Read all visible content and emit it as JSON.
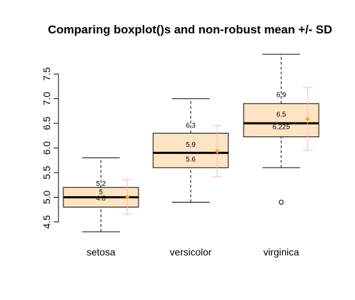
{
  "chart_data": {
    "type": "boxplot",
    "title": "Comparing boxplot()s and non-robust mean +/- SD",
    "xlabel": "",
    "ylabel": "",
    "ylim": [
      4.3,
      7.9
    ],
    "yticks": [
      4.5,
      5.0,
      5.5,
      6.0,
      6.5,
      7.0,
      7.5
    ],
    "ytick_labels": [
      "4.5",
      "5.0",
      "5.5",
      "6.0",
      "6.5",
      "7.0",
      "7.5"
    ],
    "categories": [
      "setosa",
      "versicolor",
      "virginica"
    ],
    "boxes": [
      {
        "category": "setosa",
        "min": 4.3,
        "q1": 4.8,
        "median": 5.0,
        "q3": 5.2,
        "max": 5.8,
        "outliers": []
      },
      {
        "category": "versicolor",
        "min": 4.9,
        "q1": 5.6,
        "median": 5.9,
        "q3": 6.3,
        "max": 7.0,
        "outliers": []
      },
      {
        "category": "virginica",
        "min": 5.6,
        "q1": 6.225,
        "median": 6.5,
        "q3": 6.9,
        "max": 7.9,
        "outliers": [
          4.9
        ]
      }
    ],
    "mean_sd": [
      {
        "category": "setosa",
        "mean": 5.006,
        "sd": 0.352
      },
      {
        "category": "versicolor",
        "mean": 5.936,
        "sd": 0.516
      },
      {
        "category": "virginica",
        "mean": 6.588,
        "sd": 0.636
      }
    ],
    "box_annotations": [
      {
        "category": "setosa",
        "labels": [
          {
            "text": "5.2",
            "y": 5.29
          },
          {
            "text": "5",
            "y": 5.12
          },
          {
            "text": "4.8",
            "y": 4.99
          }
        ]
      },
      {
        "category": "versicolor",
        "labels": [
          {
            "text": "6.3",
            "y": 6.47
          },
          {
            "text": "5.9",
            "y": 6.08
          },
          {
            "text": "5.6",
            "y": 5.78
          }
        ]
      },
      {
        "category": "virginica",
        "labels": [
          {
            "text": "6.9",
            "y": 7.09
          },
          {
            "text": "6.5",
            "y": 6.69
          },
          {
            "text": "6.225",
            "y": 6.44
          }
        ]
      }
    ],
    "colors": {
      "box_fill": "#ffe4c4",
      "box_stroke": "#000000",
      "mean_point": "#ffa500",
      "sd_bar": "#ffb6c1"
    }
  }
}
